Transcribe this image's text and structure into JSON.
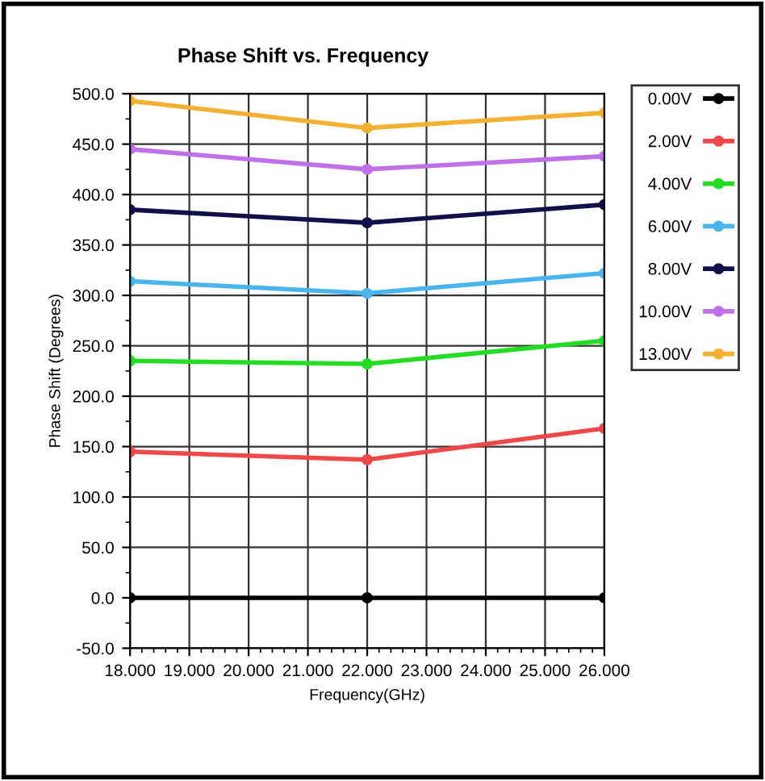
{
  "chart_data": {
    "type": "line",
    "title": "Phase Shift vs. Frequency",
    "xlabel": "Frequency(GHz)",
    "ylabel": "Phase Shift (Degrees)",
    "x": [
      18,
      22,
      26
    ],
    "series": [
      {
        "name": "0.00V",
        "color": "#000000",
        "values": [
          0,
          0,
          0
        ]
      },
      {
        "name": "2.00V",
        "color": "#f04848",
        "values": [
          145,
          137,
          168
        ]
      },
      {
        "name": "4.00V",
        "color": "#22dd22",
        "values": [
          235,
          232,
          255
        ]
      },
      {
        "name": "6.00V",
        "color": "#4ab4ee",
        "values": [
          314,
          302,
          322
        ]
      },
      {
        "name": "8.00V",
        "color": "#10104a",
        "values": [
          385,
          372,
          390
        ]
      },
      {
        "name": "10.00V",
        "color": "#c070e8",
        "values": [
          445,
          425,
          438
        ]
      },
      {
        "name": "13.00V",
        "color": "#f4b030",
        "values": [
          493,
          466,
          481
        ]
      }
    ],
    "xlim": [
      18,
      26
    ],
    "ylim": [
      -50,
      500
    ],
    "xticks": [
      {
        "value": 18,
        "label": "18.000"
      },
      {
        "value": 19,
        "label": "19.000"
      },
      {
        "value": 20,
        "label": "20.000"
      },
      {
        "value": 21,
        "label": "21.000"
      },
      {
        "value": 22,
        "label": "22.000"
      },
      {
        "value": 23,
        "label": "23.000"
      },
      {
        "value": 24,
        "label": "24.000"
      },
      {
        "value": 25,
        "label": "25.000"
      },
      {
        "value": 26,
        "label": "26.000"
      }
    ],
    "yticks": [
      {
        "value": -50,
        "label": "-50.0"
      },
      {
        "value": 0,
        "label": "0.0"
      },
      {
        "value": 50,
        "label": "50.0"
      },
      {
        "value": 100,
        "label": "100.0"
      },
      {
        "value": 150,
        "label": "150.0"
      },
      {
        "value": 200,
        "label": "200.0"
      },
      {
        "value": 250,
        "label": "250.0"
      },
      {
        "value": 300,
        "label": "300.0"
      },
      {
        "value": 350,
        "label": "350.0"
      },
      {
        "value": 400,
        "label": "400.0"
      },
      {
        "value": 450,
        "label": "450.0"
      },
      {
        "value": 500,
        "label": "500.0"
      }
    ],
    "grid": true,
    "legend": "right",
    "marker": "circle",
    "line_style": "solid"
  }
}
